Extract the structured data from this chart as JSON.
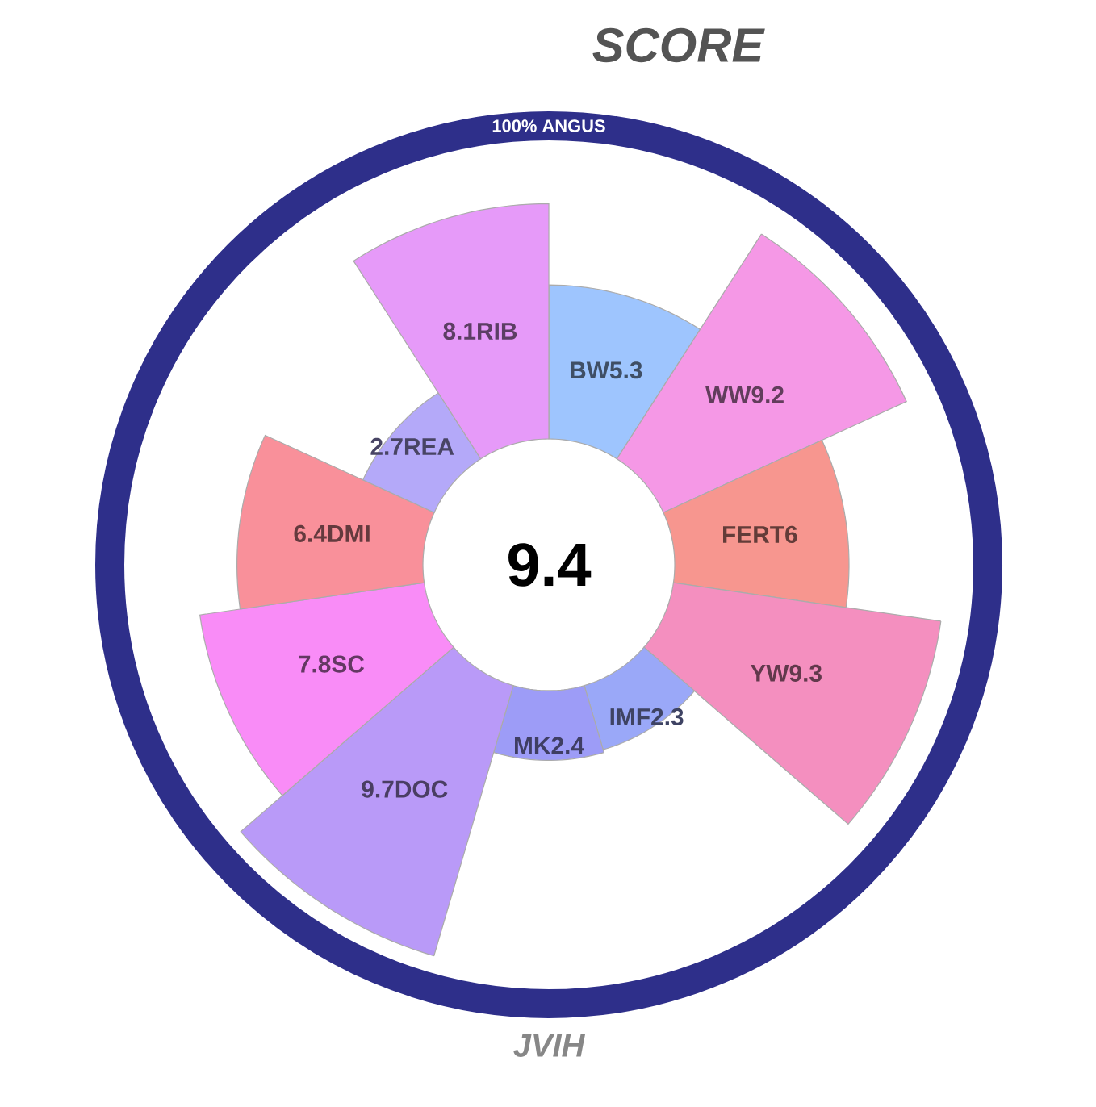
{
  "chart_data": {
    "type": "other",
    "title": "SCORE",
    "xlabel": "JVIH",
    "annotations": [
      "9.4",
      "100% ANGUS"
    ],
    "categories": [
      "BW",
      "WW",
      "FERT",
      "YW",
      "IMF",
      "MK",
      "DOC",
      "SC",
      "DMI",
      "REA",
      "RIB"
    ],
    "values": [
      5.3,
      9.2,
      6,
      9.3,
      2.3,
      2.4,
      9.7,
      7.8,
      6.4,
      2.7,
      8.1
    ],
    "colors": [
      "#9ec5fe",
      "#f598e6",
      "#f7968f",
      "#f48fbf",
      "#9aa8f8",
      "#9d9cf7",
      "#b99af8",
      "#f98cf7",
      "#f9909a",
      "#b4a9f9",
      "#e69af9"
    ],
    "data_labels": true
  }
}
